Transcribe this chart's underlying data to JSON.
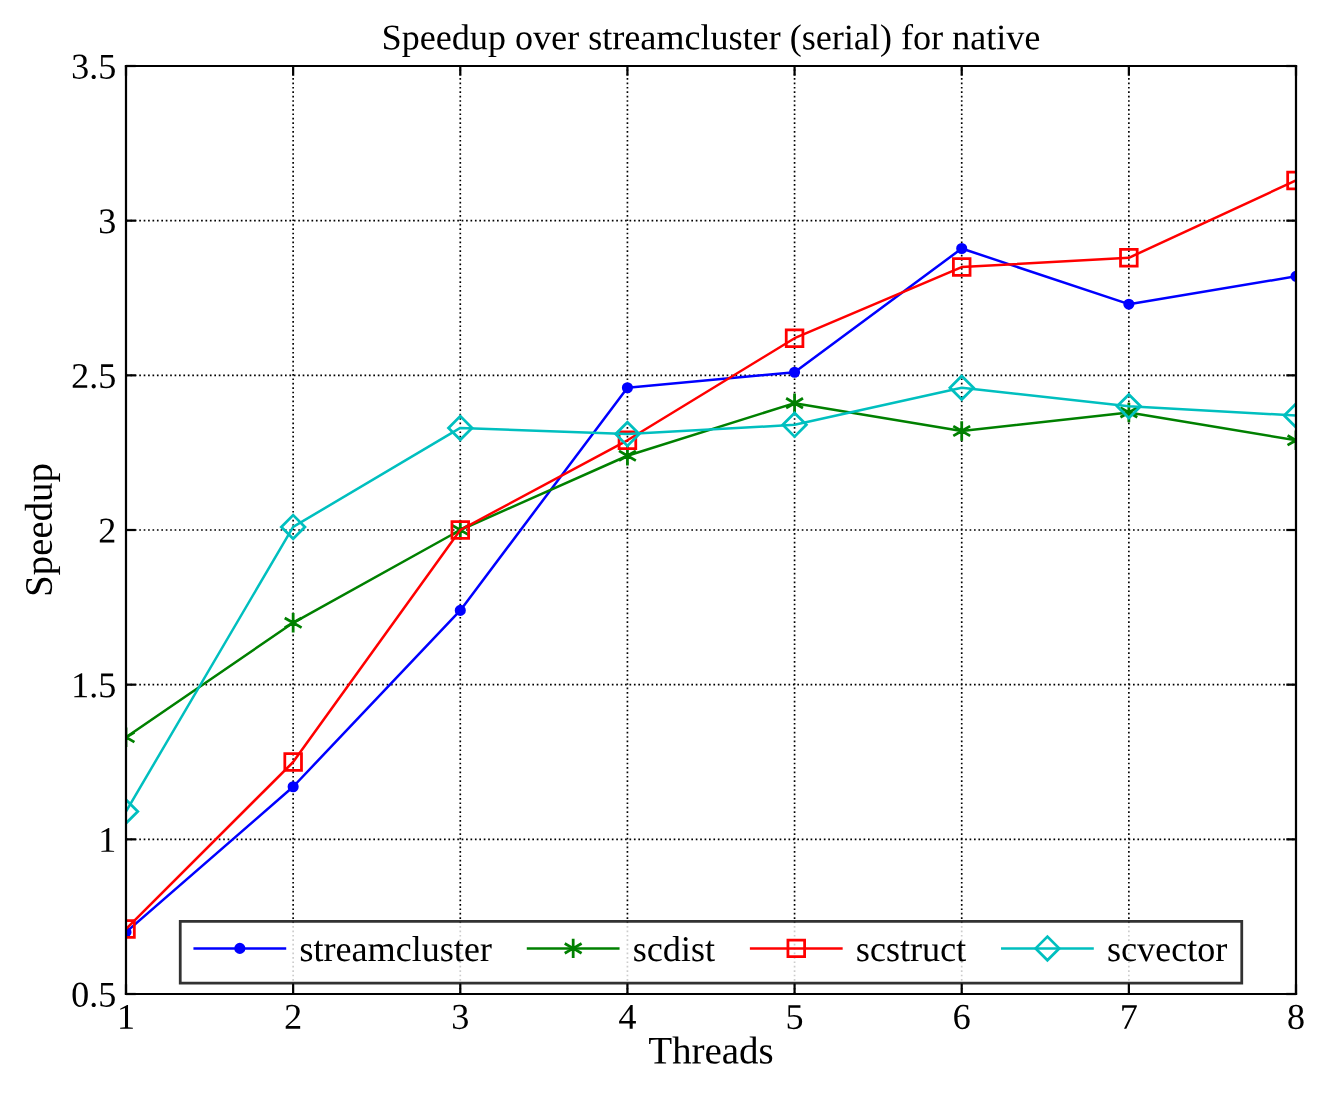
{
  "chart_data": {
    "type": "line",
    "title": "Speedup over streamcluster (serial) for native",
    "xlabel": "Threads",
    "ylabel": "Speedup",
    "x": [
      1,
      2,
      3,
      4,
      5,
      6,
      7,
      8
    ],
    "series": [
      {
        "name": "streamcluster",
        "color": "#0000ff",
        "marker": "circle",
        "values": [
          0.7,
          1.17,
          1.74,
          2.46,
          2.51,
          2.91,
          2.73,
          2.82
        ]
      },
      {
        "name": "scdist",
        "color": "#008000",
        "marker": "cross",
        "values": [
          1.33,
          1.7,
          2.0,
          2.24,
          2.41,
          2.32,
          2.38,
          2.29
        ]
      },
      {
        "name": "scstruct",
        "color": "#ff0000",
        "marker": "square",
        "values": [
          0.71,
          1.25,
          2.0,
          2.29,
          2.62,
          2.85,
          2.88,
          3.13
        ]
      },
      {
        "name": "scvector",
        "color": "#00bfbf",
        "marker": "diamond",
        "values": [
          1.09,
          2.01,
          2.33,
          2.31,
          2.34,
          2.46,
          2.4,
          2.37
        ]
      }
    ],
    "xlim": [
      1,
      8
    ],
    "xticks": [
      1,
      2,
      3,
      4,
      5,
      6,
      7,
      8
    ],
    "ylim": [
      0.5,
      3.5
    ],
    "yticks": [
      0.5,
      1,
      1.5,
      2,
      2.5,
      3,
      3.5
    ],
    "grid": true,
    "legend": "bottom",
    "line_style": "solid"
  }
}
